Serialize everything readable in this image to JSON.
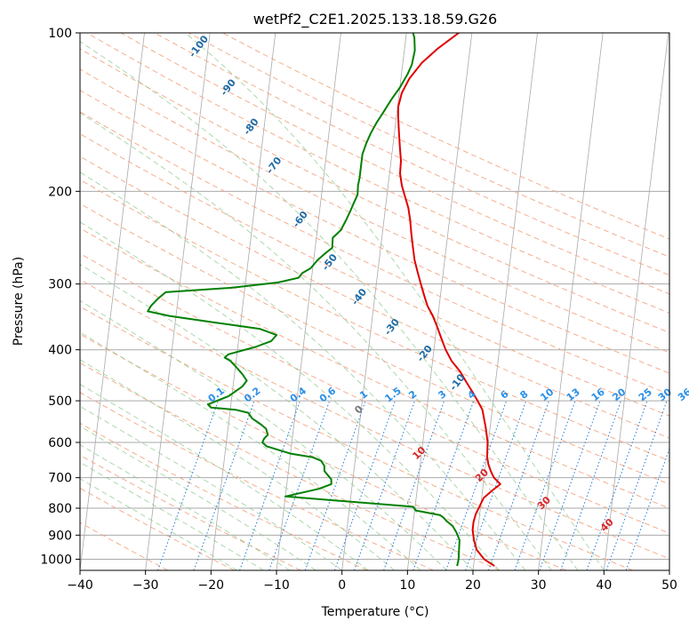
{
  "chart_data": {
    "type": "line",
    "title": "wetPf2_C2E1.2025.133.18.59.G26",
    "xlabel": "Temperature (°C)",
    "ylabel": "Pressure (hPa)",
    "xlim": [
      -40,
      50
    ],
    "ylim": [
      1050,
      100
    ],
    "y_scale": "log",
    "grid": true,
    "x_ticks": [
      "−40",
      "−30",
      "−20",
      "−10",
      "0",
      "10",
      "20",
      "30",
      "40",
      "50"
    ],
    "x_tick_values": [
      -40,
      -30,
      -20,
      -10,
      0,
      10,
      20,
      30,
      40,
      50
    ],
    "y_ticks": [
      "100",
      "200",
      "300",
      "400",
      "500",
      "600",
      "700",
      "800",
      "900",
      "1000"
    ],
    "y_tick_values": [
      100,
      200,
      300,
      400,
      500,
      600,
      700,
      800,
      900,
      1000
    ],
    "colors": {
      "temperature": "#e00000",
      "dewpoint": "#008000",
      "isotherm": "#aaaaaa",
      "dry_adiabat": "#f4a582",
      "moist_adiabat": "#8fc98f",
      "mixing_ratio": "#1f77d4",
      "isotherm_label": "#d62728",
      "adiabat_label": "#1f6aa5",
      "mixing_label": "#2a8fe8"
    },
    "series": [
      {
        "key": "temperature",
        "points": [
          [
            23.2,
            1030
          ],
          [
            21.5,
            1000
          ],
          [
            20.2,
            960
          ],
          [
            19.6,
            920
          ],
          [
            19.2,
            880
          ],
          [
            19.2,
            850
          ],
          [
            19.4,
            820
          ],
          [
            19.9,
            790
          ],
          [
            20.3,
            765
          ],
          [
            21.5,
            740
          ],
          [
            22.6,
            720
          ],
          [
            21.5,
            700
          ],
          [
            20.9,
            680
          ],
          [
            20.4,
            660
          ],
          [
            20.1,
            640
          ],
          [
            20.0,
            620
          ],
          [
            19.9,
            600
          ],
          [
            19.6,
            580
          ],
          [
            19.3,
            560
          ],
          [
            18.9,
            540
          ],
          [
            18.5,
            520
          ],
          [
            17.6,
            500
          ],
          [
            16.6,
            480
          ],
          [
            15.5,
            460
          ],
          [
            14.4,
            440
          ],
          [
            12.9,
            420
          ],
          [
            11.8,
            400
          ],
          [
            10.9,
            380
          ],
          [
            10.0,
            360
          ],
          [
            9.2,
            345
          ],
          [
            8.2,
            330
          ],
          [
            7.5,
            315
          ],
          [
            6.8,
            300
          ],
          [
            6.1,
            285
          ],
          [
            5.4,
            270
          ],
          [
            4.9,
            255
          ],
          [
            4.4,
            240
          ],
          [
            4.0,
            227
          ],
          [
            3.5,
            215
          ],
          [
            2.8,
            205
          ],
          [
            2.1,
            195
          ],
          [
            1.6,
            185
          ],
          [
            1.5,
            175
          ],
          [
            1.1,
            165
          ],
          [
            0.7,
            155
          ],
          [
            0.3,
            145
          ],
          [
            0.1,
            138
          ],
          [
            0.4,
            130
          ],
          [
            1.3,
            122
          ],
          [
            2.9,
            114
          ],
          [
            5.1,
            107
          ],
          [
            8.0,
            100
          ]
        ]
      },
      {
        "key": "dewpoint",
        "points": [
          [
            17.5,
            1030
          ],
          [
            17.6,
            1000
          ],
          [
            17.5,
            960
          ],
          [
            17.4,
            920
          ],
          [
            16.8,
            890
          ],
          [
            16.1,
            865
          ],
          [
            15.0,
            845
          ],
          [
            14.6,
            835
          ],
          [
            14.0,
            825
          ],
          [
            10.2,
            808
          ],
          [
            9.7,
            795
          ],
          [
            -10.0,
            760
          ],
          [
            -5.0,
            735
          ],
          [
            -3.2,
            720
          ],
          [
            -3.3,
            705
          ],
          [
            -4.5,
            680
          ],
          [
            -4.6,
            665
          ],
          [
            -5.2,
            650
          ],
          [
            -6.6,
            640
          ],
          [
            -10.0,
            630
          ],
          [
            -13.8,
            610
          ],
          [
            -14.5,
            600
          ],
          [
            -14.3,
            590
          ],
          [
            -13.8,
            580
          ],
          [
            -14.2,
            565
          ],
          [
            -15.0,
            555
          ],
          [
            -16.5,
            540
          ],
          [
            -17.2,
            527
          ],
          [
            -19.2,
            520
          ],
          [
            -23.0,
            515
          ],
          [
            -23.5,
            508
          ],
          [
            -20.5,
            490
          ],
          [
            -18.6,
            470
          ],
          [
            -18.0,
            458
          ],
          [
            -18.8,
            445
          ],
          [
            -20.0,
            430
          ],
          [
            -20.9,
            420
          ],
          [
            -21.8,
            414
          ],
          [
            -21.3,
            408
          ],
          [
            -17.3,
            395
          ],
          [
            -15.0,
            385
          ],
          [
            -14.3,
            375
          ],
          [
            -17.0,
            365
          ],
          [
            -24.0,
            355
          ],
          [
            -31.0,
            345
          ],
          [
            -34.4,
            338
          ],
          [
            -34.0,
            330
          ],
          [
            -33.1,
            320
          ],
          [
            -32.0,
            311
          ],
          [
            -22.0,
            305
          ],
          [
            -15.0,
            298
          ],
          [
            -12.0,
            292
          ],
          [
            -11.5,
            286
          ],
          [
            -10.3,
            280
          ],
          [
            -9.4,
            270
          ],
          [
            -8.3,
            262
          ],
          [
            -7.4,
            256
          ],
          [
            -7.5,
            245
          ],
          [
            -6.4,
            237
          ],
          [
            -5.8,
            227
          ],
          [
            -5.3,
            218
          ],
          [
            -4.9,
            210
          ],
          [
            -4.5,
            203
          ],
          [
            -4.6,
            195
          ],
          [
            -4.5,
            188
          ],
          [
            -4.5,
            180
          ],
          [
            -4.5,
            170
          ],
          [
            -4.1,
            162
          ],
          [
            -3.6,
            155
          ],
          [
            -2.9,
            148
          ],
          [
            -2.0,
            141
          ],
          [
            -1.1,
            134
          ],
          [
            0.0,
            127
          ],
          [
            0.9,
            120
          ],
          [
            1.4,
            115
          ],
          [
            1.6,
            108
          ],
          [
            1.3,
            102
          ],
          [
            1.0,
            100
          ]
        ]
      }
    ],
    "isotherm_labels": [
      {
        "text": "0",
        "t": 0,
        "p": 525
      },
      {
        "text": "10",
        "t": 10,
        "p": 635
      },
      {
        "text": "20",
        "t": 20,
        "p": 700
      },
      {
        "text": "30",
        "t": 30,
        "p": 790
      },
      {
        "text": "40",
        "t": 40,
        "p": 870
      }
    ],
    "adiabat_labels": [
      {
        "text": "-100",
        "x_at": -21.5,
        "p": 107
      },
      {
        "text": "-90",
        "x_at": -17.0,
        "p": 128
      },
      {
        "text": "-80",
        "x_at": -13.5,
        "p": 152
      },
      {
        "text": "-70",
        "x_at": -10.0,
        "p": 180
      },
      {
        "text": "-60",
        "x_at": -6.0,
        "p": 228
      },
      {
        "text": "-50",
        "x_at": -1.5,
        "p": 275
      },
      {
        "text": "-40",
        "x_at": 3.0,
        "p": 320
      },
      {
        "text": "-30",
        "x_at": 8.0,
        "p": 365
      },
      {
        "text": "-20",
        "x_at": 13.0,
        "p": 410
      },
      {
        "text": "-10",
        "x_at": 18.0,
        "p": 465
      }
    ],
    "mixing_ratio_labels": [
      "0.1",
      "0.2",
      "0.4",
      "0.6",
      "1",
      "1.5",
      "2",
      "3",
      "4",
      "6",
      "8",
      "10",
      "13",
      "16",
      "20",
      "25",
      "30",
      "36"
    ],
    "mixing_ratio_label_x": [
      -22,
      -16.5,
      -9.5,
      -5,
      0.5,
      5,
      8,
      12.5,
      17,
      22,
      25,
      28.5,
      32.5,
      36.3,
      39.5,
      43.5,
      46.5,
      49.5
    ]
  }
}
